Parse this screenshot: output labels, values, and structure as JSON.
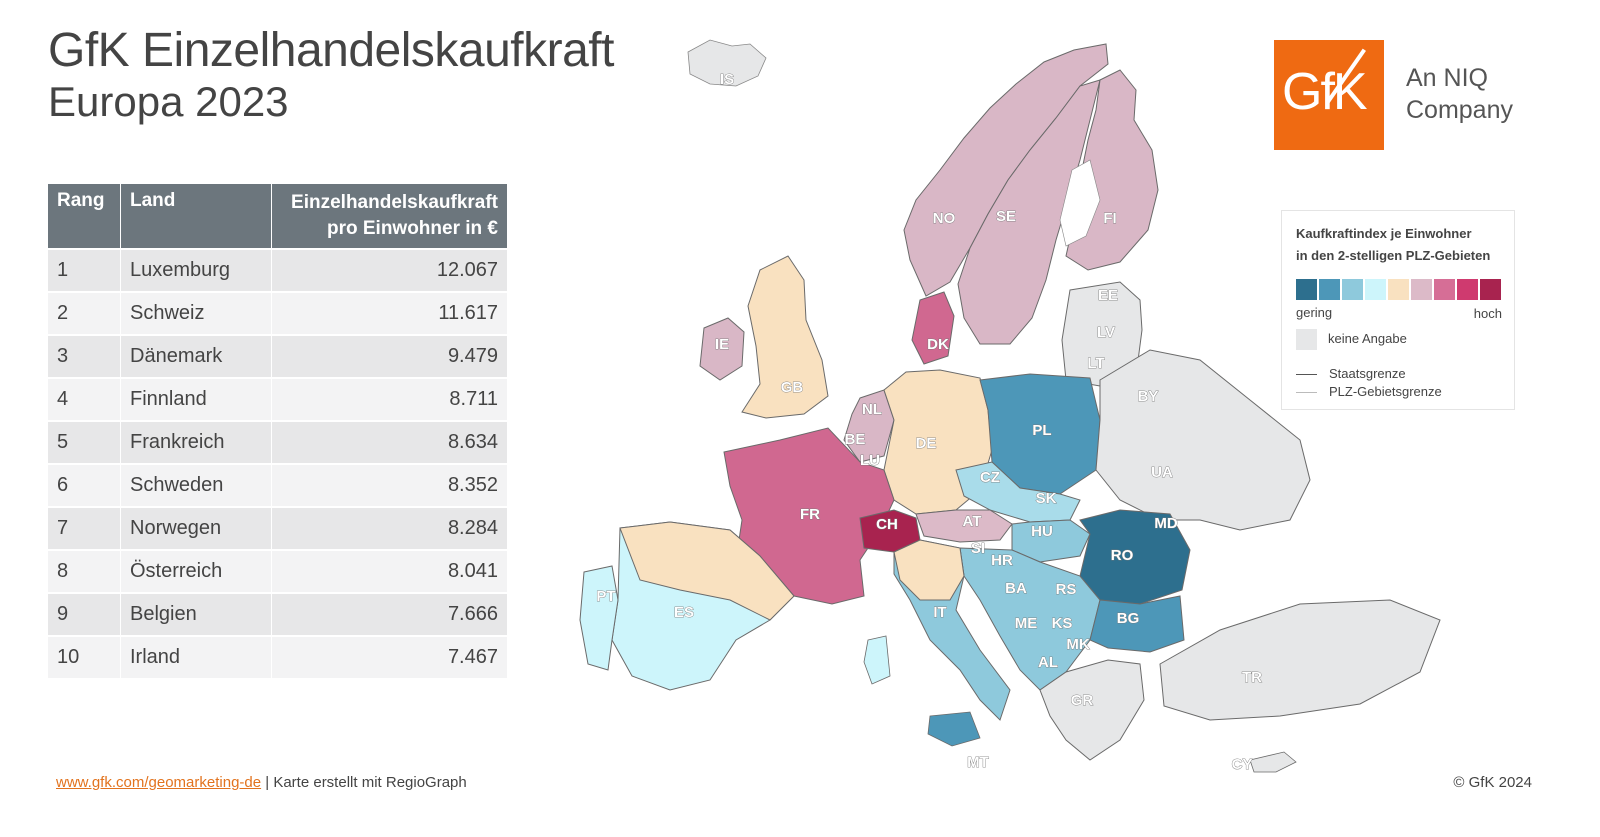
{
  "title": {
    "line1": "GfK Einzelhandelskaufkraft",
    "line2": "Europa 2023"
  },
  "table": {
    "headers": {
      "rank": "Rang",
      "country": "Land",
      "value_line1": "Einzelhandelskaufkraft",
      "value_line2": "pro Einwohner in €"
    },
    "rows": [
      {
        "rank": "1",
        "country": "Luxemburg",
        "value": "12.067"
      },
      {
        "rank": "2",
        "country": "Schweiz",
        "value": "11.617"
      },
      {
        "rank": "3",
        "country": "Dänemark",
        "value": "9.479"
      },
      {
        "rank": "4",
        "country": "Finnland",
        "value": "8.711"
      },
      {
        "rank": "5",
        "country": "Frankreich",
        "value": "8.634"
      },
      {
        "rank": "6",
        "country": "Schweden",
        "value": "8.352"
      },
      {
        "rank": "7",
        "country": "Norwegen",
        "value": "8.284"
      },
      {
        "rank": "8",
        "country": "Österreich",
        "value": "8.041"
      },
      {
        "rank": "9",
        "country": "Belgien",
        "value": "7.666"
      },
      {
        "rank": "10",
        "country": "Irland",
        "value": "7.467"
      }
    ]
  },
  "logo": {
    "text": "GfK",
    "sub_line1": "An NIQ",
    "sub_line2": "Company",
    "color": "#ef6a12"
  },
  "legend": {
    "title_line1": "Kaufkraftindex je Einwohner",
    "title_line2": "in den 2-stelligen PLZ-Gebieten",
    "colors": [
      "#2d6f8e",
      "#4d97b8",
      "#8ec9dc",
      "#cdf5fb",
      "#f9e1c0",
      "#dcbac8",
      "#d66e96",
      "#cf3a6f",
      "#a8234f"
    ],
    "low": "gering",
    "high": "hoch",
    "no_data": "keine Angabe",
    "no_data_color": "#e6e7e8",
    "state_border": "Staatsgrenze",
    "plz_border": "PLZ-Gebietsgrenze"
  },
  "map": {
    "labels": [
      "IS",
      "NO",
      "SE",
      "FI",
      "EE",
      "LV",
      "LT",
      "DK",
      "IE",
      "GB",
      "NL",
      "BE",
      "LU",
      "DE",
      "PL",
      "BY",
      "UA",
      "CZ",
      "SK",
      "AT",
      "CH",
      "FR",
      "HU",
      "MD",
      "RO",
      "SI",
      "HR",
      "BA",
      "RS",
      "ME",
      "KS",
      "BG",
      "MK",
      "AL",
      "PT",
      "ES",
      "IT",
      "GR",
      "TR",
      "MT",
      "CY"
    ]
  },
  "footer": {
    "link": "www.gfk.com/geomarketing-de",
    "separator": " | ",
    "credit": "Karte erstellt mit RegioGraph",
    "copyright": "© GfK 2024"
  }
}
